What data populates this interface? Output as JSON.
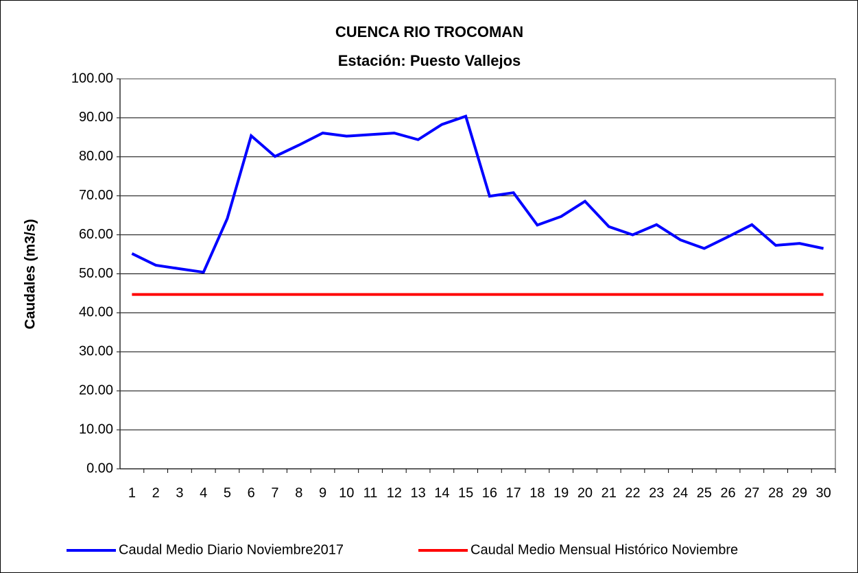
{
  "chart_data": {
    "type": "line",
    "title": "CUENCA RIO TROCOMAN",
    "subtitle": "Estación: Puesto Vallejos",
    "y_label": "Caudales (m3/s)",
    "categories": [
      "1",
      "2",
      "3",
      "4",
      "5",
      "6",
      "7",
      "8",
      "9",
      "10",
      "11",
      "12",
      "13",
      "14",
      "15",
      "16",
      "17",
      "18",
      "19",
      "20",
      "21",
      "22",
      "23",
      "24",
      "25",
      "26",
      "27",
      "28",
      "29",
      "30"
    ],
    "series": [
      {
        "name": "Caudal Medio Diario Noviembre2017",
        "color": "#0000ff",
        "values": [
          55.2,
          52.2,
          51.3,
          50.4,
          64.2,
          85.4,
          80.1,
          83.0,
          86.1,
          85.3,
          85.7,
          86.1,
          84.4,
          88.3,
          90.4,
          69.9,
          70.8,
          62.5,
          64.7,
          68.6,
          62.1,
          60.0,
          62.6,
          58.7,
          56.5,
          59.5,
          62.6,
          57.3,
          57.8,
          56.5
        ]
      },
      {
        "name": "Caudal Medio Mensual Histórico Noviembre",
        "color": "#ff0000",
        "values": [
          44.7,
          44.7,
          44.7,
          44.7,
          44.7,
          44.7,
          44.7,
          44.7,
          44.7,
          44.7,
          44.7,
          44.7,
          44.7,
          44.7,
          44.7,
          44.7,
          44.7,
          44.7,
          44.7,
          44.7,
          44.7,
          44.7,
          44.7,
          44.7,
          44.7,
          44.7,
          44.7,
          44.7,
          44.7,
          44.7
        ]
      }
    ],
    "ylim": [
      0,
      100
    ],
    "yticks": [
      {
        "value": 0,
        "label": "0.00"
      },
      {
        "value": 10,
        "label": "10.00"
      },
      {
        "value": 20,
        "label": "20.00"
      },
      {
        "value": 30,
        "label": "30.00"
      },
      {
        "value": 40,
        "label": "40.00"
      },
      {
        "value": 50,
        "label": "50.00"
      },
      {
        "value": 60,
        "label": "60.00"
      },
      {
        "value": 70,
        "label": "70.00"
      },
      {
        "value": 80,
        "label": "80.00"
      },
      {
        "value": 90,
        "label": "90.00"
      },
      {
        "value": 100,
        "label": "100.00"
      }
    ],
    "grid": true,
    "legend": "bottom"
  }
}
